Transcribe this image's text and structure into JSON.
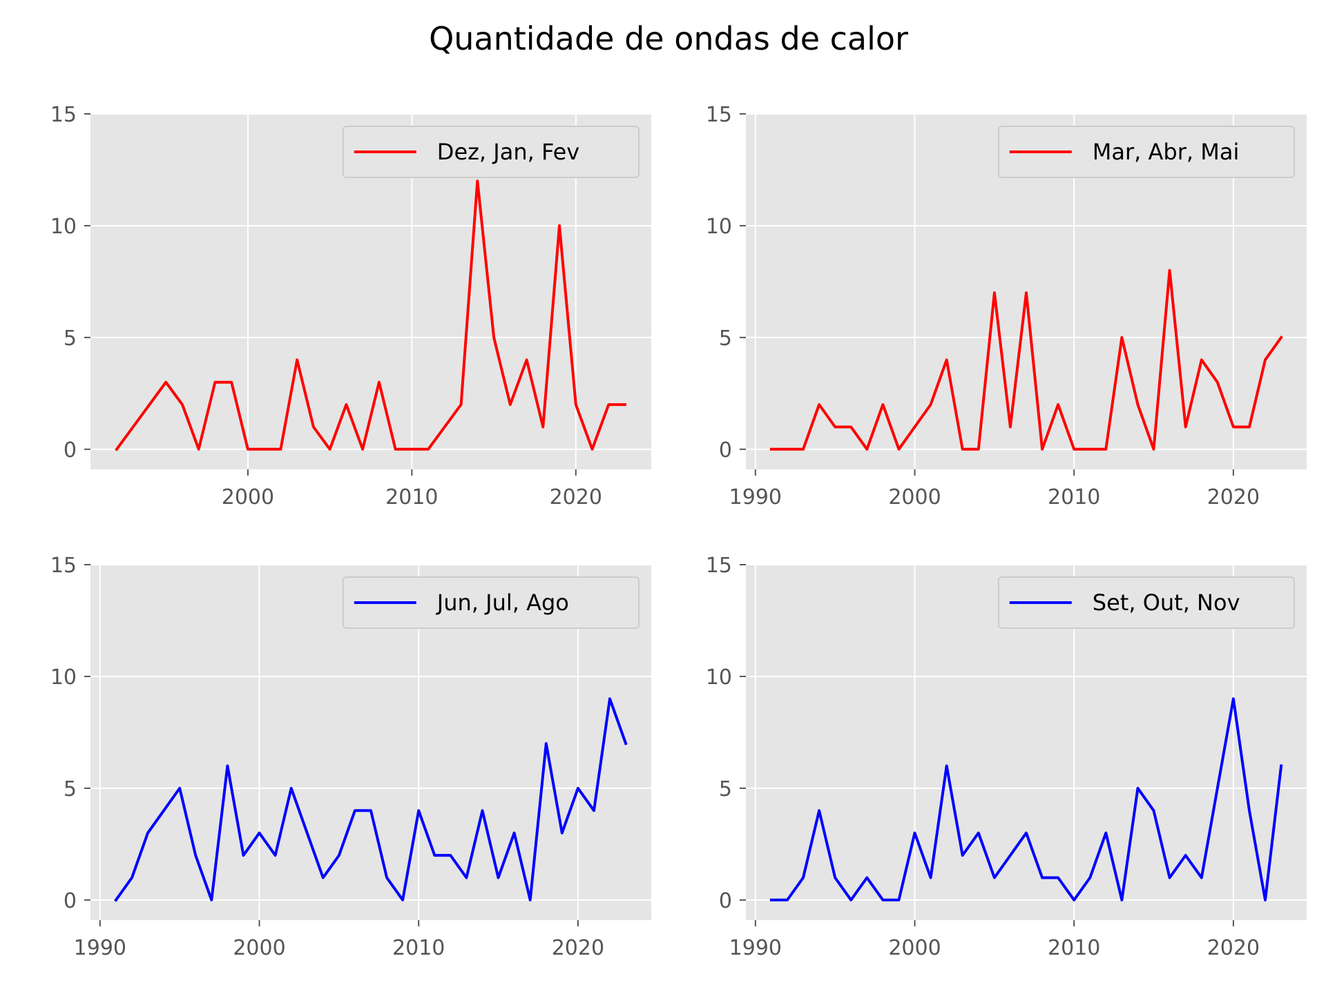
{
  "figure": {
    "title": "Quantidade de ondas de calor"
  },
  "chart_data": [
    {
      "type": "line",
      "series": [
        {
          "name": "Dez, Jan, Fev",
          "color": "#ff0000",
          "x": [
            1992,
            1993,
            1994,
            1995,
            1996,
            1997,
            1998,
            1999,
            2000,
            2001,
            2002,
            2003,
            2004,
            2005,
            2006,
            2007,
            2008,
            2009,
            2010,
            2011,
            2012,
            2013,
            2014,
            2015,
            2016,
            2017,
            2018,
            2019,
            2020,
            2021,
            2022,
            2023
          ],
          "y": [
            0,
            1,
            2,
            3,
            2,
            0,
            3,
            3,
            0,
            0,
            0,
            4,
            1,
            0,
            2,
            0,
            3,
            0,
            0,
            0,
            1,
            2,
            12,
            5,
            2,
            4,
            1,
            10,
            2,
            0,
            2,
            2
          ]
        }
      ],
      "xticks": [
        "2000",
        "2010",
        "2020"
      ],
      "yticks": [
        "0",
        "5",
        "10",
        "15"
      ],
      "xlim": [
        1990.4,
        2024.6
      ],
      "ylim": [
        -0.9,
        15
      ],
      "legend": "upper right",
      "grid": true
    },
    {
      "type": "line",
      "series": [
        {
          "name": "Mar, Abr, Mai",
          "color": "#ff0000",
          "x": [
            1991,
            1992,
            1993,
            1994,
            1995,
            1996,
            1997,
            1998,
            1999,
            2000,
            2001,
            2002,
            2003,
            2004,
            2005,
            2006,
            2007,
            2008,
            2009,
            2010,
            2011,
            2012,
            2013,
            2014,
            2015,
            2016,
            2017,
            2018,
            2019,
            2020,
            2021,
            2022,
            2023
          ],
          "y": [
            0,
            0,
            0,
            2,
            1,
            1,
            0,
            2,
            0,
            1,
            2,
            4,
            0,
            0,
            7,
            1,
            7,
            0,
            2,
            0,
            0,
            0,
            5,
            2,
            0,
            8,
            1,
            4,
            3,
            1,
            1,
            4,
            5
          ]
        }
      ],
      "xticks": [
        "1990",
        "2000",
        "2010",
        "2020"
      ],
      "yticks": [
        "0",
        "5",
        "10",
        "15"
      ],
      "xlim": [
        1989.4,
        2024.6
      ],
      "ylim": [
        -0.9,
        15
      ],
      "legend": "upper right",
      "grid": true
    },
    {
      "type": "line",
      "series": [
        {
          "name": "Jun, Jul, Ago",
          "color": "#0000ff",
          "x": [
            1991,
            1992,
            1993,
            1994,
            1995,
            1996,
            1997,
            1998,
            1999,
            2000,
            2001,
            2002,
            2003,
            2004,
            2005,
            2006,
            2007,
            2008,
            2009,
            2010,
            2011,
            2012,
            2013,
            2014,
            2015,
            2016,
            2017,
            2018,
            2019,
            2020,
            2021,
            2022,
            2023
          ],
          "y": [
            0,
            1,
            3,
            4,
            5,
            2,
            0,
            6,
            2,
            3,
            2,
            5,
            3,
            1,
            2,
            4,
            4,
            1,
            0,
            4,
            2,
            2,
            1,
            4,
            1,
            3,
            0,
            7,
            3,
            5,
            4,
            9,
            7
          ]
        }
      ],
      "xticks": [
        "1990",
        "2000",
        "2010",
        "2020"
      ],
      "yticks": [
        "0",
        "5",
        "10",
        "15"
      ],
      "xlim": [
        1989.4,
        2024.6
      ],
      "ylim": [
        -0.9,
        15
      ],
      "legend": "upper right",
      "grid": true
    },
    {
      "type": "line",
      "series": [
        {
          "name": "Set, Out, Nov",
          "color": "#0000ff",
          "x": [
            1991,
            1992,
            1993,
            1994,
            1995,
            1996,
            1997,
            1998,
            1999,
            2000,
            2001,
            2002,
            2003,
            2004,
            2005,
            2006,
            2007,
            2008,
            2009,
            2010,
            2011,
            2012,
            2013,
            2014,
            2015,
            2016,
            2017,
            2018,
            2019,
            2020,
            2021,
            2022,
            2023
          ],
          "y": [
            0,
            0,
            1,
            4,
            1,
            0,
            1,
            0,
            0,
            3,
            1,
            6,
            2,
            3,
            1,
            2,
            3,
            1,
            1,
            0,
            1,
            3,
            0,
            5,
            4,
            1,
            2,
            1,
            5,
            9,
            4,
            0,
            6
          ]
        }
      ],
      "xticks": [
        "1990",
        "2000",
        "2010",
        "2020"
      ],
      "yticks": [
        "0",
        "5",
        "10",
        "15"
      ],
      "xlim": [
        1989.4,
        2024.6
      ],
      "ylim": [
        -0.9,
        15
      ],
      "legend": "upper right",
      "grid": true
    }
  ]
}
